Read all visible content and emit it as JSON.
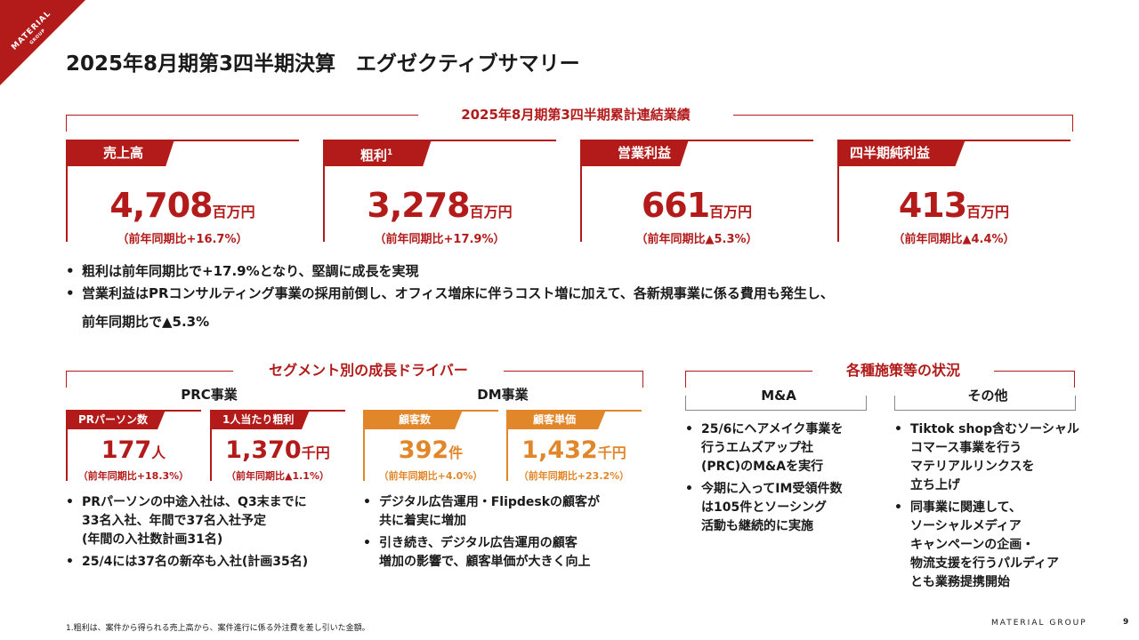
{
  "brand": {
    "logo_text": "MATERIAL",
    "logo_sub": "GROUP",
    "footer": "MATERIAL GROUP",
    "page_number": "9",
    "accent": "#b31b1b",
    "accent_orange": "#e2862a"
  },
  "title": "2025年8月期第3四半期決算　エグゼクティブサマリー",
  "results": {
    "heading": "2025年8月期第3四半期累計連結業績",
    "kpis": [
      {
        "label": "売上高",
        "sup": "",
        "value": "4,708",
        "unit": "百万円",
        "change": "（前年同期比+16.7%）"
      },
      {
        "label": "粗利",
        "sup": "1",
        "value": "3,278",
        "unit": "百万円",
        "change": "（前年同期比+17.9%）"
      },
      {
        "label": "営業利益",
        "sup": "",
        "value": "661",
        "unit": "百万円",
        "change": "（前年同期比▲5.3%）"
      },
      {
        "label": "四半期純利益",
        "sup": "",
        "value": "413",
        "unit": "百万円",
        "change": "（前年同期比▲4.4%）"
      }
    ],
    "bullets": [
      "粗利は前年同期比で+17.9%となり、堅調に成長を実現",
      "営業利益はPRコンサルティング事業の採用前倒し、オフィス増床に伴うコスト増に加えて、各新規事業に係る費用も発生し、",
      "前年同期比で▲5.3%"
    ]
  },
  "segments": {
    "heading": "セグメント別の成長ドライバー",
    "prc": {
      "title": "PRC事業",
      "cards": [
        {
          "label": "PRパーソン数",
          "value": "177",
          "unit": "人",
          "change": "（前年同期比+18.3%）"
        },
        {
          "label": "1人当たり粗利",
          "value": "1,370",
          "unit": "千円",
          "change": "（前年同期比▲1.1%）"
        }
      ],
      "bullets": [
        [
          "PRパーソンの中途入社は、Q3末までに",
          "33名入社、年間で37名入社予定",
          "(年間の入社数計画31名)"
        ],
        [
          "25/4には37名の新卒も入社(計画35名)"
        ]
      ]
    },
    "dm": {
      "title": "DM事業",
      "cards": [
        {
          "label": "顧客数",
          "value": "392",
          "unit": "件",
          "change": "（前年同期比+4.0%）"
        },
        {
          "label": "顧客単価",
          "value": "1,432",
          "unit": "千円",
          "change": "（前年同期比+23.2%）"
        }
      ],
      "bullets": [
        [
          "デジタル広告運用・Flipdeskの顧客が",
          "共に着実に増加"
        ],
        [
          "引き続き、デジタル広告運用の顧客",
          "増加の影響で、顧客単価が大きく向上"
        ]
      ]
    }
  },
  "initiatives": {
    "heading": "各種施策等の状況",
    "ma": {
      "title": "M&A",
      "bullets": [
        [
          "25/6にヘアメイク事業を",
          "行うエムズアップ社",
          "(PRC)のM&Aを実行"
        ],
        [
          "今期に入ってIM受領件数",
          "は105件とソーシング",
          "活動も継続的に実施"
        ]
      ]
    },
    "other": {
      "title": "その他",
      "bullets": [
        [
          "Tiktok shop含むソーシャル",
          "コマース事業を行う",
          "マテリアルリンクスを",
          "立ち上げ"
        ],
        [
          "同事業に関連して、",
          "ソーシャルメディア",
          "キャンペーンの企画・",
          "物流支援を行うパルディア",
          "とも業務提携開始"
        ]
      ]
    }
  },
  "footnote": "1.粗利は、案件から得られる売上高から、案件進行に係る外注費を差し引いた金額。"
}
